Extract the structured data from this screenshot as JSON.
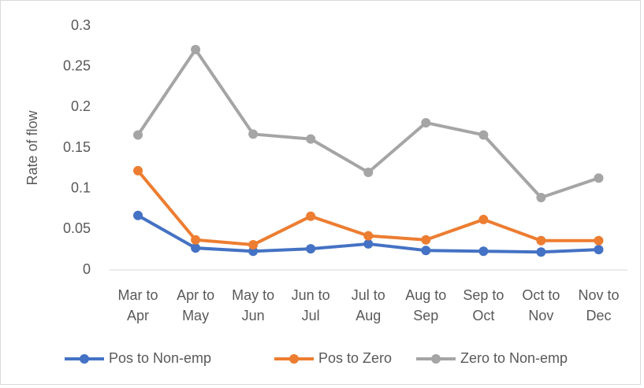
{
  "chart_data": {
    "type": "line",
    "y_label": "Rate of flow",
    "categories": [
      "Mar to Apr",
      "Apr to May",
      "May to Jun",
      "Jun to Jul",
      "Jul to Aug",
      "Aug to Sep",
      "Sep to Oct",
      "Oct to Nov",
      "Nov to Dec"
    ],
    "series": [
      {
        "name": "Pos to Non-emp",
        "color": "#4472c4",
        "values": [
          0.067,
          0.027,
          0.023,
          0.026,
          0.032,
          0.024,
          0.023,
          0.022,
          0.025
        ]
      },
      {
        "name": "Pos to Zero",
        "color": "#ed7d31",
        "values": [
          0.122,
          0.037,
          0.031,
          0.066,
          0.042,
          0.037,
          0.062,
          0.036,
          0.036
        ]
      },
      {
        "name": "Zero to Non-emp",
        "color": "#a5a5a5",
        "values": [
          0.166,
          0.271,
          0.167,
          0.161,
          0.12,
          0.181,
          0.166,
          0.089,
          0.113
        ]
      }
    ],
    "ylim": [
      0,
      0.3
    ],
    "yticks": [
      0,
      0.05,
      0.1,
      0.15,
      0.2,
      0.25,
      0.3
    ],
    "legend": "bottom",
    "grid": false
  }
}
